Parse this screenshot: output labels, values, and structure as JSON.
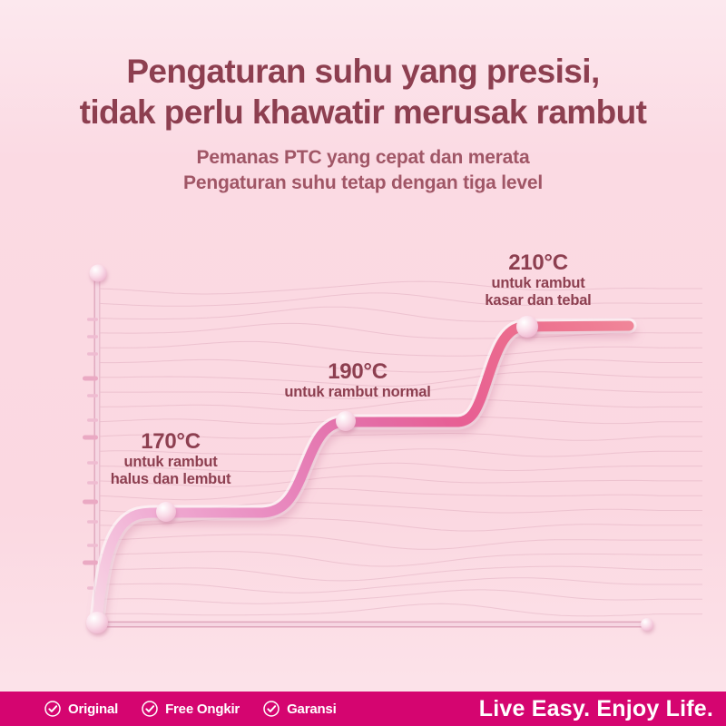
{
  "colors": {
    "background": "#fbd9e2",
    "background_top": "#fce8ee",
    "title": "#8d3f50",
    "subtitle": "#a05666",
    "annotation": "#8d3f50",
    "curve_start": "#f8d6e5",
    "curve_mid": "#e370aa",
    "curve_end": "#f08598",
    "axis": "#f6d6e2",
    "wave_lines": "#d89fb4",
    "footer_bar": "#d50570",
    "footer_text": "#ffffff"
  },
  "header": {
    "title_line1": "Pengaturan suhu yang presisi,",
    "title_line2": "tidak perlu khawatir merusak rambut",
    "subtitle_line1": "Pemanas PTC yang cepat dan merata",
    "subtitle_line2": "Pengaturan suhu tetap dengan tiga level"
  },
  "chart_data": {
    "type": "line",
    "style": "stepped temperature ramp with three plateaus and sphere markers",
    "title": "",
    "xlabel": "",
    "ylabel": "",
    "x": [
      0,
      1,
      2.4,
      3.6,
      5.2,
      6.2,
      7.7
    ],
    "values": [
      0,
      170,
      170,
      190,
      190,
      210,
      210
    ],
    "unit": "°C",
    "ylim": [
      0,
      240
    ],
    "x_tick_labels": [],
    "y_tick_labels": [],
    "grid": "decorative wavy contour lines",
    "legend": "none",
    "levels": [
      {
        "temp": "170°C",
        "desc_line1": "untuk rambut",
        "desc_line2": "halus dan lembut"
      },
      {
        "temp": "190°C",
        "desc_line1": "untuk rambut normal",
        "desc_line2": ""
      },
      {
        "temp": "210°C",
        "desc_line1": "untuk rambut",
        "desc_line2": "kasar dan tebal"
      }
    ]
  },
  "footer": {
    "badges": [
      {
        "label": "Original",
        "icon": "check-circle-icon"
      },
      {
        "label": "Free Ongkir",
        "icon": "check-circle-icon"
      },
      {
        "label": "Garansi",
        "icon": "check-circle-icon"
      }
    ],
    "tagline": "Live Easy. Enjoy Life."
  }
}
